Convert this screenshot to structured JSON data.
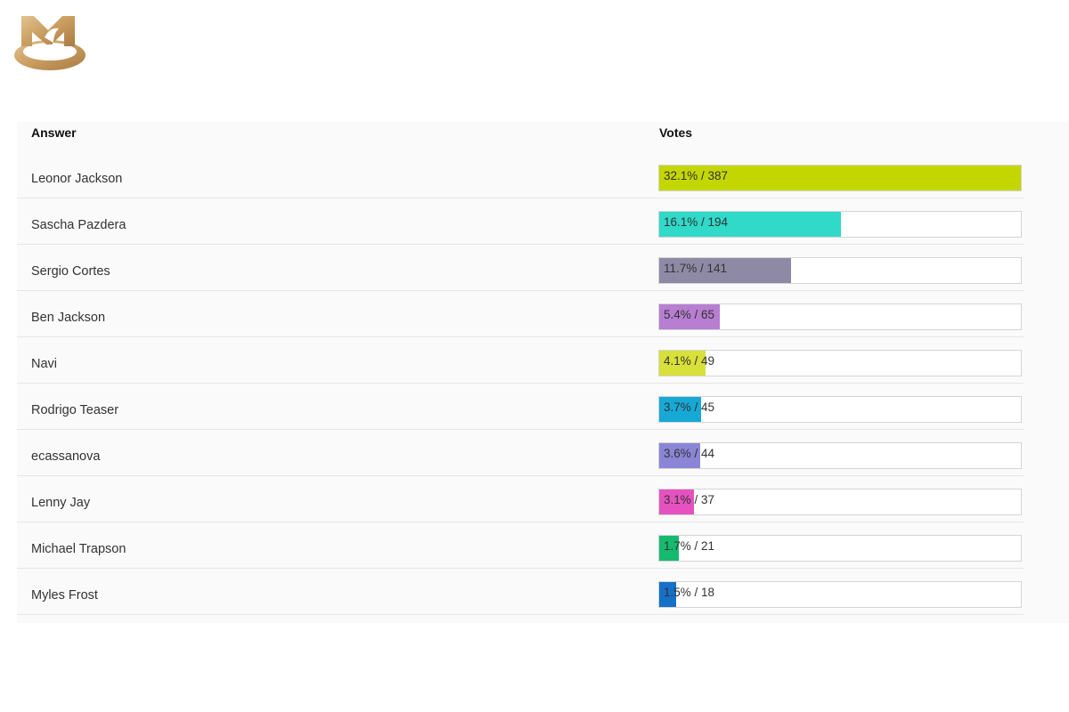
{
  "brand": {
    "logo_color": "#c9a46a",
    "logo_icon": "mm-monogram-logo"
  },
  "table": {
    "answer_header": "Answer",
    "votes_header": "Votes"
  },
  "chart_data": {
    "type": "bar",
    "orientation": "horizontal",
    "categories": [
      "Leonor Jackson",
      "Sascha Pazdera",
      "Sergio Cortes",
      "Ben Jackson",
      "Navi",
      "Rodrigo Teaser",
      "ecassanova",
      "Lenny Jay",
      "Michael Trapson",
      "Myles Frost"
    ],
    "percents": [
      32.1,
      16.1,
      11.7,
      5.4,
      4.1,
      3.7,
      3.6,
      3.1,
      1.7,
      1.5
    ],
    "votes": [
      387,
      194,
      141,
      65,
      49,
      45,
      44,
      37,
      21,
      18
    ],
    "labels": [
      "32.1% / 387",
      "16.1% / 194",
      "11.7% / 141",
      "5.4% / 65",
      "4.1% / 49",
      "3.7% / 45",
      "3.6% / 44",
      "3.1% / 37",
      "1.7% / 21",
      "1.5% / 18"
    ],
    "colors": [
      "#c3d600",
      "#30d9c8",
      "#8e8aa6",
      "#b77ed1",
      "#d8e03a",
      "#17a9d6",
      "#8b85d6",
      "#e552bf",
      "#16ba6f",
      "#1570c8"
    ],
    "bar_scale_max_percent": 32.1
  }
}
